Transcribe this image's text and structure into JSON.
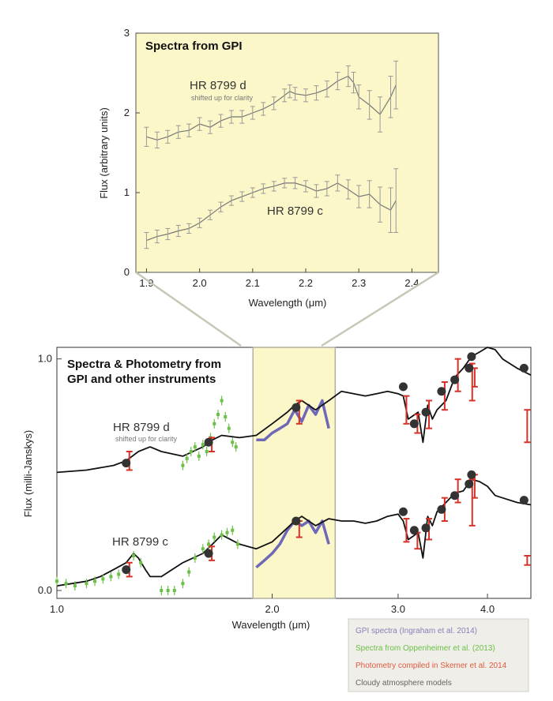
{
  "chart_data": [
    {
      "type": "line",
      "title": "Spectra from GPI",
      "xlabel": "Wavelength (μm)",
      "ylabel": "Flux (arbitrary units)",
      "xlim": [
        1.88,
        2.45
      ],
      "ylim": [
        0,
        3
      ],
      "xticks": [
        "1.9",
        "2.0",
        "2.1",
        "2.2",
        "2.3",
        "2.4"
      ],
      "yticks": [
        "0",
        "1",
        "2",
        "3"
      ],
      "annotations": [
        {
          "text": "HR 8799 d"
        },
        {
          "text": "shifted up for clarity"
        },
        {
          "text": "HR 8799 c"
        }
      ],
      "series": [
        {
          "name": "HR 8799 d",
          "x": [
            1.9,
            1.92,
            1.94,
            1.96,
            1.98,
            2.0,
            2.02,
            2.04,
            2.06,
            2.08,
            2.1,
            2.12,
            2.14,
            2.16,
            2.17,
            2.18,
            2.2,
            2.22,
            2.24,
            2.26,
            2.28,
            2.29,
            2.3,
            2.32,
            2.34,
            2.36,
            2.37
          ],
          "y": [
            1.7,
            1.66,
            1.7,
            1.76,
            1.78,
            1.86,
            1.82,
            1.9,
            1.95,
            1.95,
            2.0,
            2.05,
            2.12,
            2.22,
            2.27,
            2.24,
            2.22,
            2.25,
            2.3,
            2.4,
            2.46,
            2.38,
            2.2,
            2.1,
            1.98,
            2.2,
            2.35
          ],
          "err": [
            0.12,
            0.1,
            0.08,
            0.08,
            0.08,
            0.08,
            0.08,
            0.08,
            0.08,
            0.08,
            0.08,
            0.08,
            0.08,
            0.08,
            0.08,
            0.08,
            0.08,
            0.09,
            0.1,
            0.11,
            0.13,
            0.13,
            0.15,
            0.18,
            0.22,
            0.26,
            0.3
          ]
        },
        {
          "name": "HR 8799 c",
          "x": [
            1.9,
            1.92,
            1.94,
            1.96,
            1.98,
            2.0,
            2.02,
            2.04,
            2.06,
            2.08,
            2.1,
            2.12,
            2.14,
            2.16,
            2.18,
            2.2,
            2.22,
            2.24,
            2.26,
            2.28,
            2.3,
            2.32,
            2.34,
            2.36,
            2.37
          ],
          "y": [
            0.4,
            0.45,
            0.48,
            0.52,
            0.55,
            0.62,
            0.72,
            0.82,
            0.9,
            0.95,
            1.0,
            1.05,
            1.08,
            1.12,
            1.12,
            1.08,
            1.02,
            1.05,
            1.12,
            1.04,
            0.95,
            0.98,
            0.85,
            0.78,
            0.9
          ],
          "err": [
            0.1,
            0.08,
            0.07,
            0.07,
            0.06,
            0.06,
            0.06,
            0.06,
            0.06,
            0.06,
            0.06,
            0.06,
            0.06,
            0.06,
            0.07,
            0.07,
            0.08,
            0.09,
            0.1,
            0.12,
            0.14,
            0.17,
            0.22,
            0.28,
            0.4
          ]
        }
      ]
    },
    {
      "type": "line",
      "title": "Spectra & Photometry from GPI and other instruments",
      "title_lines": [
        "Spectra & Photometry from",
        "GPI and other instruments"
      ],
      "xlabel": "Wavelength (μm)",
      "ylabel": "Flux (milli-Janskys)",
      "x_scale": "log",
      "xlim": [
        1.0,
        4.6
      ],
      "ylim": [
        0,
        1.05
      ],
      "xticks": [
        "1.0",
        "2.0",
        "3.0",
        "4.0"
      ],
      "yticks": [
        "0.0",
        "1.0"
      ],
      "highlight_band": [
        1.88,
        2.45
      ],
      "annotations": [
        {
          "text": "HR 8799 d"
        },
        {
          "text": "shifted up for clarity"
        },
        {
          "text": "HR 8799 c"
        }
      ],
      "legend": {
        "position": "bottom-right",
        "entries": [
          {
            "label": "GPI spectra (Ingraham et al. 2014)",
            "color": "#8a7fb8"
          },
          {
            "label": "Spectra from Oppenheimer et al. (2013)",
            "color": "#6cc048"
          },
          {
            "label": "Photometry compiled in Skemer et al. 2014",
            "color": "#e05a40"
          },
          {
            "label": "Cloudy atmosphere models",
            "color": "#666666"
          }
        ]
      },
      "colors": {
        "model": "#111111",
        "gpi": "#6f68b8",
        "oppenheimer": "#6cc048",
        "photometry": "#d63228",
        "points": "#333333",
        "band": "#fbf7c8"
      },
      "series": [
        {
          "name": "Cloudy atmosphere models (d)",
          "x": [
            1.0,
            1.1,
            1.2,
            1.25,
            1.3,
            1.35,
            1.4,
            1.5,
            1.6,
            1.65,
            1.7,
            1.8,
            1.9,
            2.0,
            2.1,
            2.15,
            2.2,
            2.3,
            2.4,
            2.5,
            2.6,
            2.7,
            2.8,
            2.9,
            3.0,
            3.05,
            3.1,
            3.2,
            3.25,
            3.3,
            3.35,
            3.4,
            3.5,
            3.6,
            3.7,
            3.8,
            3.9,
            4.0,
            4.1,
            4.2,
            4.4,
            4.6
          ],
          "y": [
            0.51,
            0.52,
            0.54,
            0.56,
            0.6,
            0.62,
            0.6,
            0.58,
            0.62,
            0.65,
            0.67,
            0.66,
            0.67,
            0.72,
            0.77,
            0.8,
            0.82,
            0.78,
            0.82,
            0.86,
            0.85,
            0.84,
            0.85,
            0.86,
            0.85,
            0.84,
            0.74,
            0.77,
            0.64,
            0.8,
            0.74,
            0.78,
            0.82,
            0.92,
            0.96,
            1.01,
            1.03,
            1.05,
            1.04,
            1.0,
            0.96,
            0.93
          ]
        },
        {
          "name": "Cloudy atmosphere models (c)",
          "x": [
            1.0,
            1.05,
            1.1,
            1.15,
            1.2,
            1.25,
            1.28,
            1.3,
            1.33,
            1.35,
            1.4,
            1.5,
            1.6,
            1.65,
            1.7,
            1.8,
            1.9,
            2.0,
            2.1,
            2.15,
            2.2,
            2.3,
            2.4,
            2.5,
            2.6,
            2.7,
            2.8,
            2.9,
            3.0,
            3.05,
            3.1,
            3.2,
            3.25,
            3.3,
            3.35,
            3.4,
            3.5,
            3.6,
            3.7,
            3.8,
            3.9,
            4.0,
            4.1,
            4.2,
            4.4,
            4.6
          ],
          "y": [
            0.02,
            0.03,
            0.04,
            0.06,
            0.09,
            0.12,
            0.16,
            0.14,
            0.09,
            0.06,
            0.06,
            0.12,
            0.16,
            0.2,
            0.24,
            0.2,
            0.18,
            0.21,
            0.27,
            0.3,
            0.32,
            0.28,
            0.31,
            0.3,
            0.3,
            0.29,
            0.3,
            0.32,
            0.33,
            0.3,
            0.22,
            0.25,
            0.14,
            0.32,
            0.28,
            0.34,
            0.38,
            0.42,
            0.43,
            0.48,
            0.47,
            0.45,
            0.41,
            0.4,
            0.38,
            0.37
          ]
        },
        {
          "name": "GPI spectra (d)",
          "x": [
            1.9,
            1.95,
            2.0,
            2.05,
            2.1,
            2.15,
            2.2,
            2.25,
            2.3,
            2.35,
            2.4
          ],
          "y": [
            0.65,
            0.65,
            0.68,
            0.7,
            0.72,
            0.78,
            0.73,
            0.8,
            0.76,
            0.82,
            0.7
          ]
        },
        {
          "name": "GPI spectra (c)",
          "x": [
            1.9,
            1.95,
            2.0,
            2.05,
            2.1,
            2.15,
            2.2,
            2.25,
            2.3,
            2.35,
            2.4
          ],
          "y": [
            0.1,
            0.13,
            0.16,
            0.2,
            0.26,
            0.3,
            0.28,
            0.3,
            0.25,
            0.3,
            0.2
          ]
        },
        {
          "name": "Oppenheimer spectra (d)",
          "x": [
            1.5,
            1.52,
            1.54,
            1.56,
            1.58,
            1.6,
            1.62,
            1.64,
            1.66,
            1.68,
            1.7,
            1.72,
            1.74,
            1.76,
            1.78
          ],
          "y": [
            0.54,
            0.57,
            0.6,
            0.62,
            0.58,
            0.63,
            0.6,
            0.66,
            0.72,
            0.76,
            0.82,
            0.75,
            0.7,
            0.64,
            0.62
          ]
        },
        {
          "name": "Oppenheimer spectra (c)",
          "x": [
            1.0,
            1.03,
            1.06,
            1.1,
            1.13,
            1.16,
            1.19,
            1.22,
            1.25,
            1.28,
            1.31,
            1.4,
            1.43,
            1.46,
            1.5,
            1.53,
            1.56,
            1.6,
            1.63,
            1.66,
            1.7,
            1.73,
            1.76,
            1.79
          ],
          "y": [
            0.04,
            0.03,
            0.02,
            0.03,
            0.04,
            0.05,
            0.06,
            0.07,
            0.09,
            0.15,
            0.12,
            0.0,
            0.0,
            0.0,
            0.03,
            0.08,
            0.14,
            0.18,
            0.2,
            0.23,
            0.24,
            0.25,
            0.26,
            0.2
          ]
        },
        {
          "name": "Photometry points (d)",
          "x": [
            1.25,
            1.63,
            2.16,
            3.05,
            3.16,
            3.28,
            3.45,
            3.6,
            3.77,
            3.8,
            4.5
          ],
          "y": [
            0.55,
            0.64,
            0.79,
            0.88,
            0.72,
            0.77,
            0.86,
            0.91,
            0.96,
            1.01,
            0.96
          ]
        },
        {
          "name": "Photometry points (c)",
          "x": [
            1.25,
            1.63,
            2.16,
            3.05,
            3.16,
            3.28,
            3.45,
            3.6,
            3.77,
            3.8,
            4.5
          ],
          "y": [
            0.09,
            0.16,
            0.3,
            0.34,
            0.26,
            0.27,
            0.35,
            0.41,
            0.46,
            0.5,
            0.39
          ]
        },
        {
          "name": "Photometry error bars (d)",
          "x": [
            1.25,
            1.63,
            2.16,
            3.05,
            3.16,
            3.28,
            3.45,
            3.6,
            3.77,
            3.8,
            4.5
          ],
          "y_low": [
            0.52,
            0.6,
            0.72,
            0.72,
            0.68,
            0.7,
            0.78,
            0.86,
            0.82,
            0.88,
            0.64
          ],
          "y_high": [
            0.6,
            0.66,
            0.82,
            0.84,
            0.76,
            0.82,
            0.9,
            1.0,
            0.98,
            0.96,
            0.78
          ]
        },
        {
          "name": "Photometry error bars (c)",
          "x": [
            1.25,
            1.63,
            2.16,
            3.05,
            3.16,
            3.28,
            3.45,
            3.6,
            3.77,
            3.8,
            4.5
          ],
          "y_low": [
            0.06,
            0.13,
            0.23,
            0.21,
            0.18,
            0.22,
            0.3,
            0.38,
            0.28,
            0.4,
            0.11
          ],
          "y_high": [
            0.12,
            0.19,
            0.3,
            0.31,
            0.25,
            0.31,
            0.4,
            0.48,
            0.48,
            0.5,
            0.15
          ]
        }
      ]
    }
  ]
}
